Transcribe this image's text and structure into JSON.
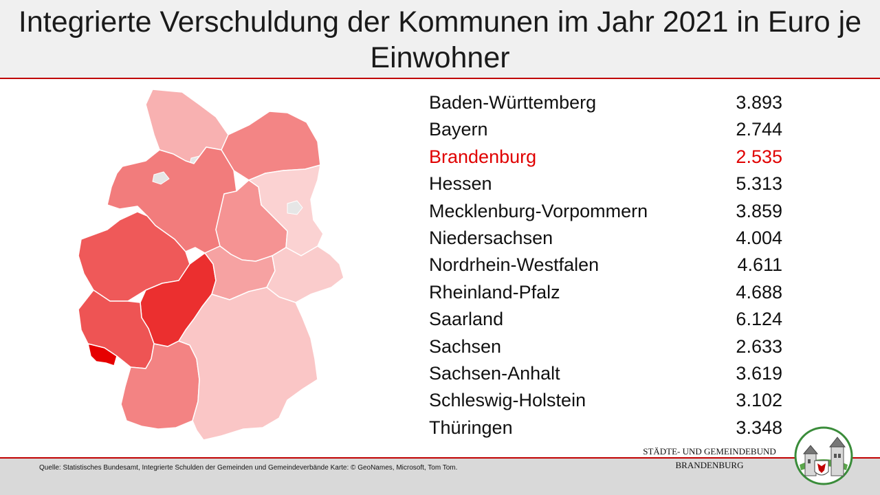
{
  "title": "Integrierte Verschuldung der Kommunen im Jahr 2021 in Euro je Einwohner",
  "chart_data": {
    "type": "table",
    "title": "Integrierte Verschuldung der Kommunen im Jahr 2021 in Euro je Einwohner",
    "categories": [
      "Baden-Württemberg",
      "Bayern",
      "Brandenburg",
      "Hessen",
      "Mecklenburg-Vorpommern",
      "Niedersachsen",
      "Nordrhein-Westfalen",
      "Rheinland-Pfalz",
      "Saarland",
      "Sachsen",
      "Sachsen-Anhalt",
      "Schleswig-Holstein",
      "Thüringen"
    ],
    "values": [
      3893,
      2744,
      2535,
      5313,
      3859,
      4004,
      4611,
      4688,
      6124,
      2633,
      3619,
      3102,
      3348
    ],
    "value_labels": [
      "3.893",
      "2.744",
      "2.535",
      "5.313",
      "3.859",
      "4.004",
      "4.611",
      "4.688",
      "6.124",
      "2.633",
      "3.619",
      "3.102",
      "3.348"
    ],
    "highlight": "Brandenburg",
    "colors": {
      "scale_low": "#fbd2d2",
      "scale_high": "#e60000",
      "highlight_text": "#e00000",
      "accent_line": "#c00000"
    }
  },
  "footer": {
    "source": "Quelle: Statistisches Bundesamt, Integrierte Schulden der Gemeinden und Gemeindeverbände Karte: © GeoNames, Microsoft, Tom Tom.",
    "org_line1": "STÄDTE- UND GEMEINDEBUND",
    "org_line2": "BRANDENBURG"
  },
  "icons": {
    "logo": "coat-of-arms-logo-icon"
  }
}
